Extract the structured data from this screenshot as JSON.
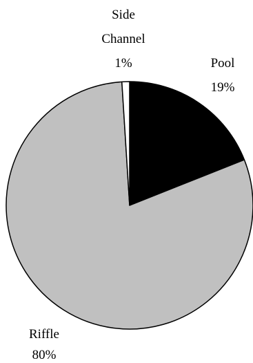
{
  "chart_data": {
    "type": "pie",
    "title": "",
    "slices": [
      {
        "name_lines": [
          "Pool"
        ],
        "percent_label": "19%",
        "value": 19,
        "color": "#000000"
      },
      {
        "name_lines": [
          "Riffle"
        ],
        "percent_label": "80%",
        "value": 80,
        "color": "#c0c0c0"
      },
      {
        "name_lines": [
          "Side",
          "Channel"
        ],
        "percent_label": "1%",
        "value": 1,
        "color": "#ffffff"
      }
    ],
    "start_angle_deg": 0,
    "direction": "clockwise",
    "legend": "none",
    "border_color": "#000000"
  }
}
